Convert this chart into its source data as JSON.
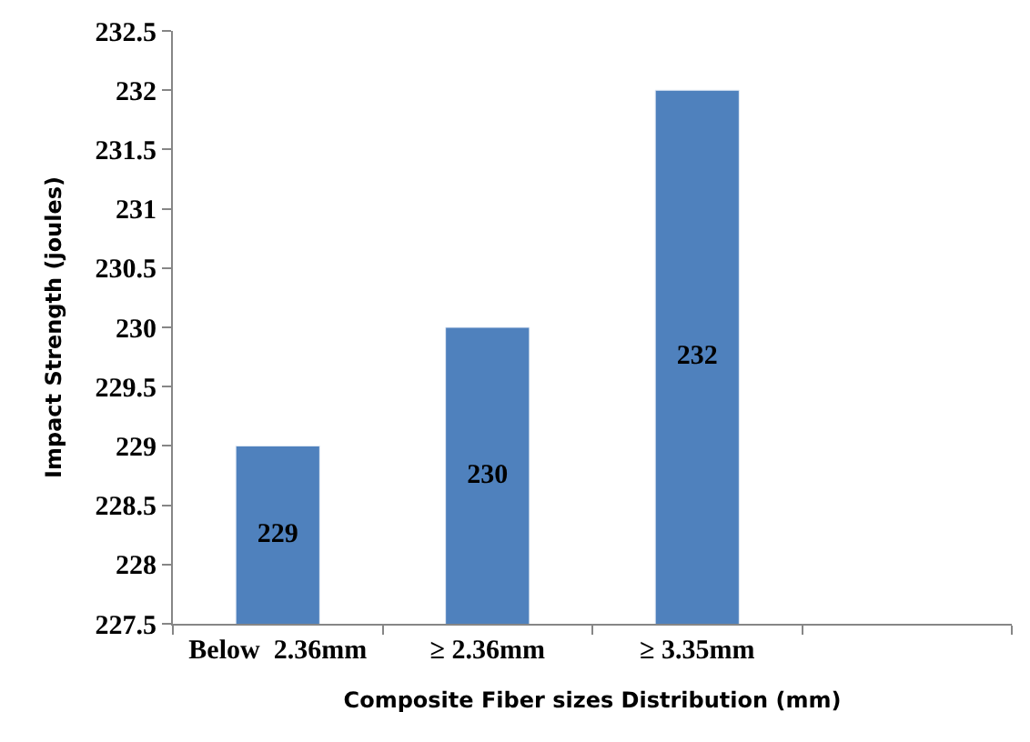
{
  "chart_data": {
    "type": "bar",
    "xlabel": "Composite Fiber sizes Distribution (mm)",
    "ylabel": "Impact Strength (joules)",
    "categories": [
      "Below  2.36mm",
      "≥ 2.36mm",
      "≥ 3.35mm",
      null
    ],
    "values": [
      229,
      230,
      232,
      null
    ],
    "color": "#4f81bd",
    "ylim": [
      227.5,
      232.5
    ],
    "yticks": [
      227.5,
      228,
      228.5,
      229,
      229.5,
      230,
      230.5,
      231,
      231.5,
      232,
      232.5
    ],
    "data_labels": true,
    "legend": false
  }
}
